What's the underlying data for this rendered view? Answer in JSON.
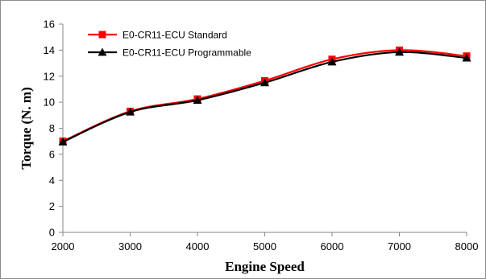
{
  "chart_data": {
    "type": "line",
    "title": "",
    "xlabel": "Engine Speed",
    "ylabel": "Torque (N. m)",
    "x": [
      2000,
      3000,
      4000,
      5000,
      6000,
      7000,
      8000
    ],
    "xlim": [
      2000,
      8000
    ],
    "xticks": [
      2000,
      3000,
      4000,
      5000,
      6000,
      7000,
      8000
    ],
    "ylim": [
      0,
      16
    ],
    "yticks": [
      0,
      2,
      4,
      6,
      8,
      10,
      12,
      14,
      16
    ],
    "grid": false,
    "smooth": true,
    "legend_position": "top-left",
    "series": [
      {
        "name": "E0-CR11-ECU Standard",
        "color": "#ff0000",
        "marker": "square",
        "values": [
          7.0,
          9.3,
          10.25,
          11.65,
          13.3,
          14.0,
          13.55
        ]
      },
      {
        "name": "E0-CR11-ECU Programmable",
        "color": "#000000",
        "marker": "triangle",
        "values": [
          6.95,
          9.25,
          10.15,
          11.5,
          13.1,
          13.85,
          13.4
        ]
      }
    ]
  }
}
